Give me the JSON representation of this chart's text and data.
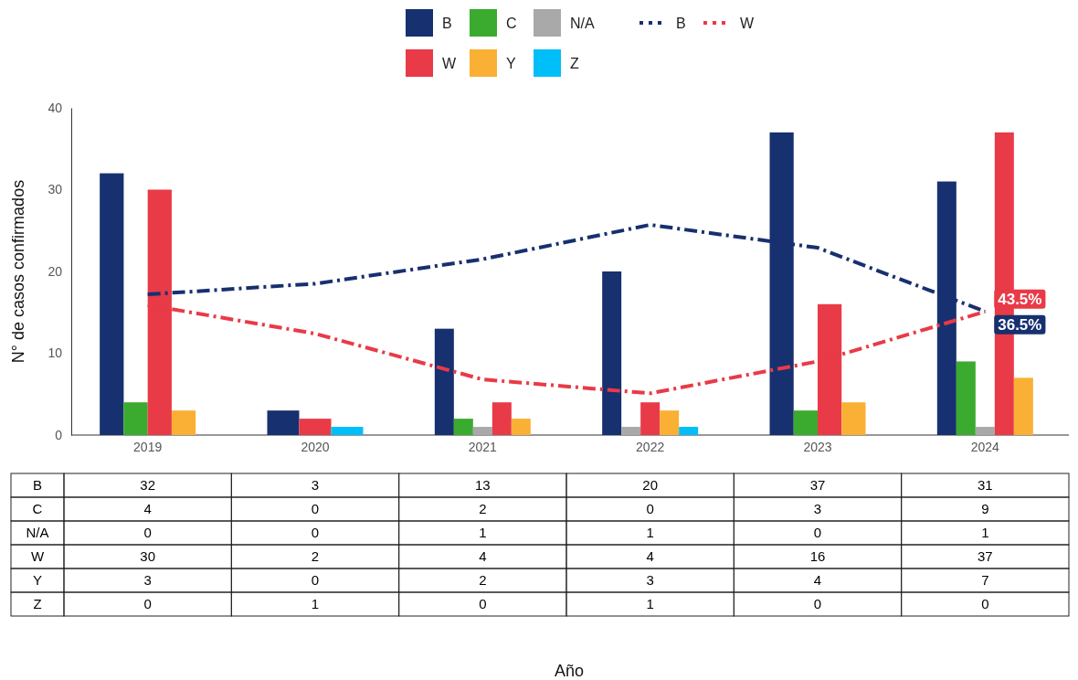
{
  "chart_data": {
    "type": "bar",
    "ylabel": "N° de casos confirmados",
    "categories": [
      "2019",
      "2020",
      "2021",
      "2022",
      "2023",
      "2024"
    ],
    "series": [
      {
        "name": "B",
        "color": "#17306f",
        "values": [
          32,
          3,
          13,
          20,
          37,
          31
        ],
        "value_labels": [
          "32",
          "3",
          "13",
          "20",
          "37",
          "31"
        ]
      },
      {
        "name": "C",
        "color": "#3aab2e",
        "values": [
          4,
          0,
          2,
          0,
          3,
          9
        ],
        "value_labels": [
          "4",
          "0",
          "2",
          "0",
          "3",
          "9"
        ]
      },
      {
        "name": "N/A",
        "color": "#a9a9a9",
        "values": [
          0,
          0,
          1,
          1,
          0,
          1
        ],
        "value_labels": [
          "0",
          "0",
          "1",
          "1",
          "0",
          "1"
        ]
      },
      {
        "name": "W",
        "color": "#e93a47",
        "values": [
          30,
          2,
          4,
          4,
          16,
          37
        ],
        "value_labels": [
          "30",
          "2",
          "4",
          "4",
          "16",
          "37"
        ]
      },
      {
        "name": "Y",
        "color": "#f9b034",
        "values": [
          3,
          0,
          2,
          3,
          4,
          7
        ],
        "value_labels": [
          "3",
          "0",
          "2",
          "3",
          "4",
          "7"
        ]
      },
      {
        "name": "Z",
        "color": "#00bff8",
        "values": [
          0,
          1,
          0,
          1,
          0,
          0
        ],
        "value_labels": [
          "0",
          "1",
          "0",
          "1",
          "0",
          "0"
        ]
      },
      {
        "name": "B",
        "type": "line",
        "color": "#17306f",
        "values": [
          17.2,
          18.5,
          21.5,
          25.7,
          22.9,
          15.1
        ]
      },
      {
        "name": "W",
        "type": "line",
        "color": "#e93a47",
        "values": [
          15.9,
          12.4,
          6.8,
          5.1,
          9.0,
          15.1
        ]
      }
    ],
    "ylim": [
      0,
      40
    ],
    "yticks": [
      0,
      10,
      20,
      30,
      40
    ],
    "grid": false,
    "legend": "top",
    "line_style": "dashed",
    "annotations": [
      {
        "text": "43.5%",
        "x": "2024",
        "y": 15.1
      },
      {
        "text": "36.5%",
        "x": "2024",
        "y": 15.1
      },
      "Año"
    ]
  }
}
